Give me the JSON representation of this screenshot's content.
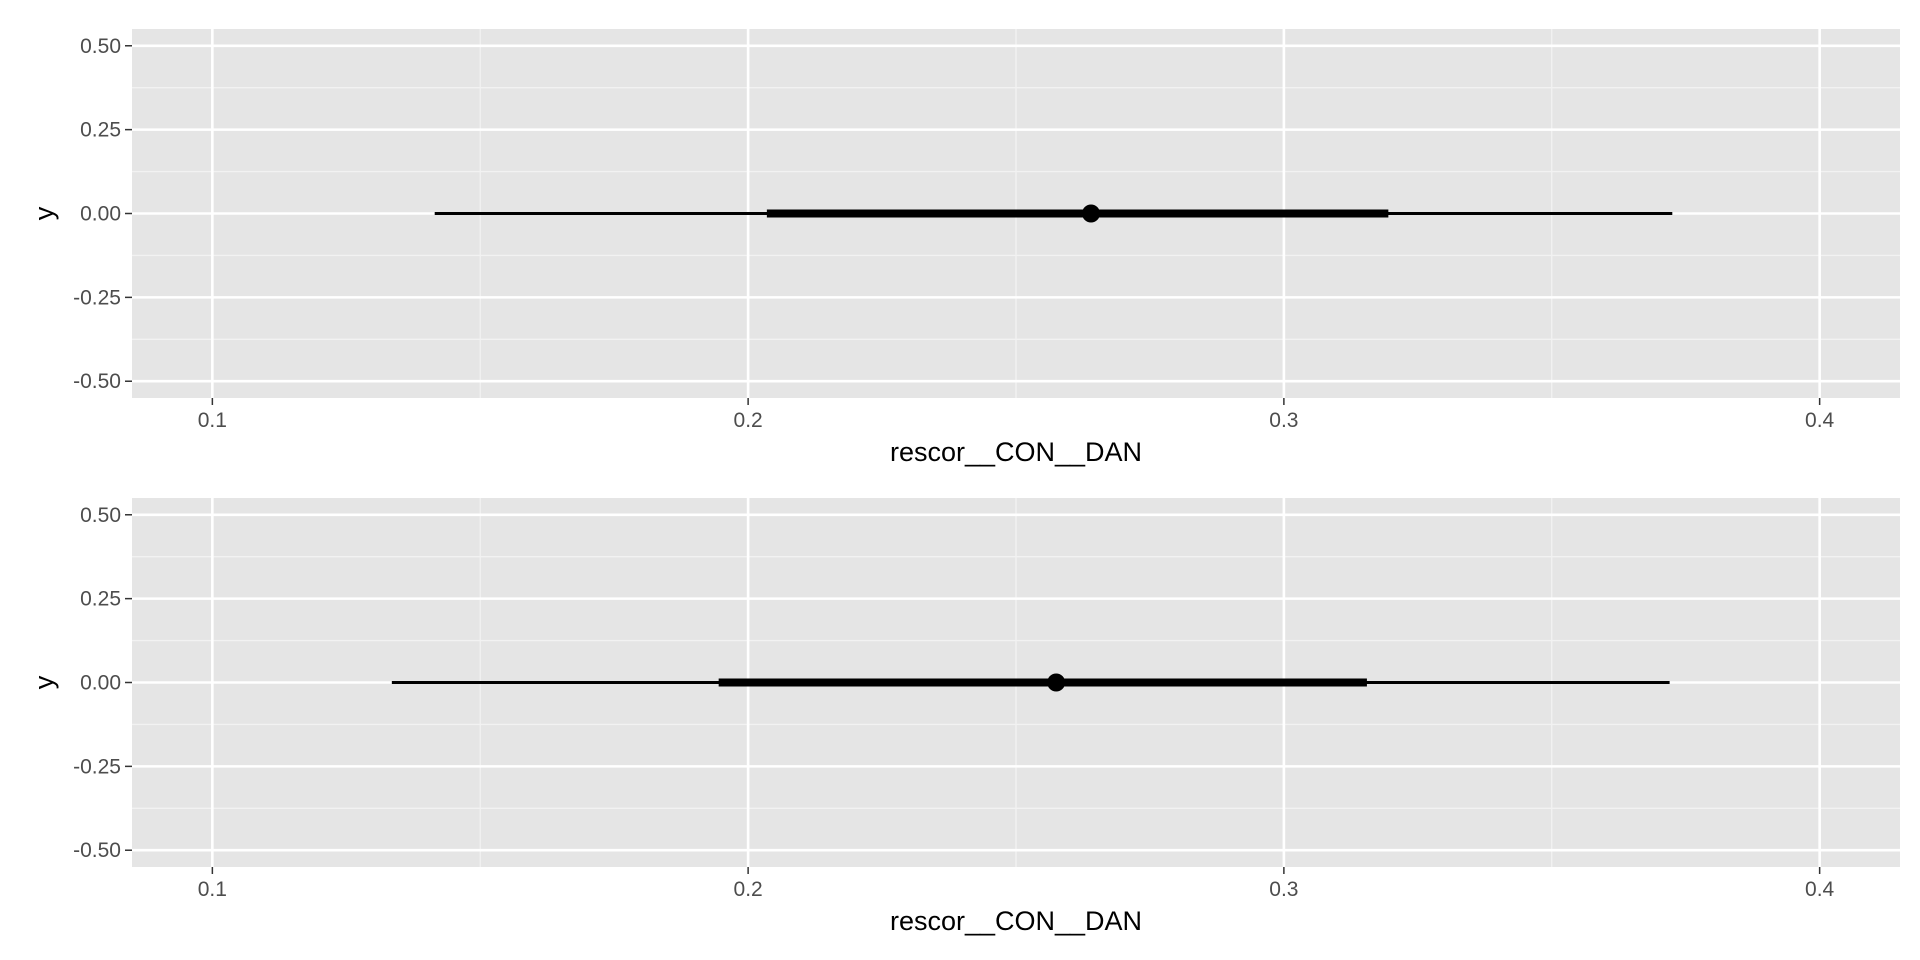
{
  "colors": {
    "panel_background": "#e5e5e5",
    "grid_major": "#ffffff",
    "grid_minor": "#f2f2f2",
    "mark": "#000000",
    "tick_text": "#4d4d4d",
    "axis_title": "#000000"
  },
  "chart_data": [
    {
      "type": "pointinterval",
      "xlabel": "rescor__CON__DAN",
      "ylabel": "y",
      "xlim": [
        0.085,
        0.415
      ],
      "ylim": [
        -0.55,
        0.55
      ],
      "x_ticks": [
        "0.1",
        "0.2",
        "0.3",
        "0.4"
      ],
      "y_ticks": [
        "0.50",
        "0.25",
        "0.00",
        "-0.25",
        "-0.50"
      ],
      "grid": true,
      "y": 0.0,
      "point": 0.264,
      "inner_interval": [
        0.2035,
        0.3195
      ],
      "outer_interval": [
        0.1415,
        0.3725
      ]
    },
    {
      "type": "pointinterval",
      "xlabel": "rescor__CON__DAN",
      "ylabel": "y",
      "xlim": [
        0.085,
        0.415
      ],
      "ylim": [
        -0.55,
        0.55
      ],
      "x_ticks": [
        "0.1",
        "0.2",
        "0.3",
        "0.4"
      ],
      "y_ticks": [
        "0.50",
        "0.25",
        "0.00",
        "-0.25",
        "-0.50"
      ],
      "grid": true,
      "y": 0.0,
      "point": 0.2575,
      "inner_interval": [
        0.1945,
        0.3155
      ],
      "outer_interval": [
        0.1335,
        0.372
      ]
    }
  ]
}
